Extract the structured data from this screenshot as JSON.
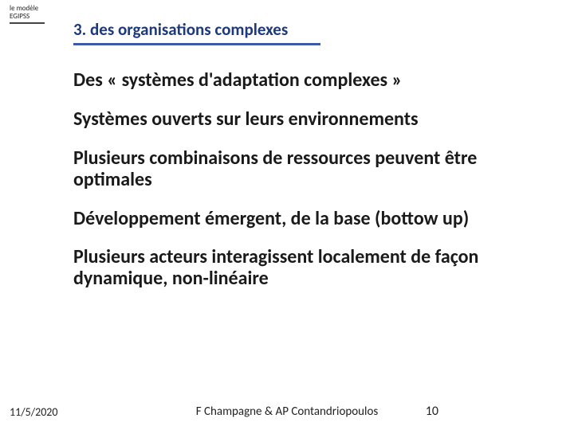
{
  "logo": {
    "line1": "le modèle",
    "line2": "EGIPSS"
  },
  "section": {
    "title": "3. des organisations complexes",
    "title_color": "#1f3a7a",
    "underline_color": "#3b5aa8",
    "underline_width": 310
  },
  "paragraphs": [
    "Des « systèmes d'adaptation complexes »",
    "Systèmes ouverts sur leurs environnements",
    "Plusieurs combinaisons de ressources peuvent être optimales",
    "Développement émergent, de la base (bottow up)",
    "Plusieurs acteurs interagissent localement de façon dynamique, non-linéaire"
  ],
  "footer": {
    "date": "11/5/2020",
    "author": "F Champagne & AP Contandriopoulos",
    "page": "10"
  },
  "typography": {
    "title_fontsize": 21,
    "body_fontsize": 24,
    "body_weight": 700,
    "body_color": "#1a1a1a",
    "footer_fontsize": 14
  },
  "background_color": "#ffffff"
}
